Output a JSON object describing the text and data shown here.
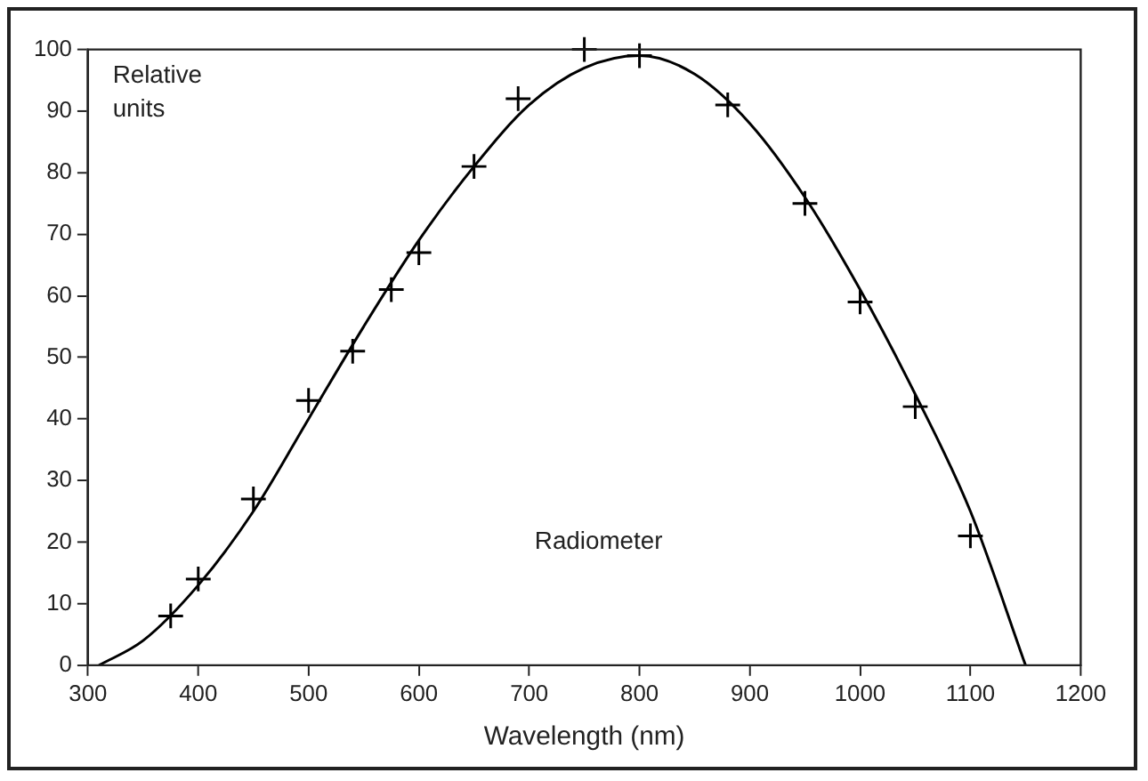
{
  "chart_data": {
    "type": "line",
    "xlabel": "Wavelength (nm)",
    "ylabel": "Relative units",
    "xlim": [
      300,
      1200
    ],
    "xticks": [
      300,
      400,
      500,
      600,
      700,
      800,
      900,
      1000,
      1100,
      1200
    ],
    "ylim": [
      0,
      100
    ],
    "yticks": [
      0,
      10,
      20,
      30,
      40,
      50,
      60,
      70,
      80,
      90,
      100
    ],
    "grid": false,
    "legend": false,
    "series": [
      {
        "color": "#000000",
        "marker": "none",
        "x": [
          310,
          350,
          400,
          450,
          500,
          550,
          600,
          650,
          700,
          750,
          800,
          850,
          900,
          950,
          1000,
          1050,
          1100,
          1150
        ],
        "values": [
          0,
          4,
          13,
          25,
          40,
          55,
          69,
          81,
          91,
          97,
          99,
          96,
          88,
          76,
          61,
          44,
          25,
          0
        ]
      },
      {
        "type": "scatter",
        "color": "#000000",
        "marker": "cross",
        "x": [
          375,
          400,
          450,
          500,
          540,
          575,
          600,
          650,
          690,
          750,
          800,
          880,
          950,
          1000,
          1050,
          1100
        ],
        "values": [
          8,
          14,
          27,
          43,
          51,
          61,
          67,
          81,
          92,
          100,
          99,
          91,
          75,
          59,
          42,
          21
        ]
      }
    ],
    "annotations": [
      "Radiometer"
    ]
  }
}
